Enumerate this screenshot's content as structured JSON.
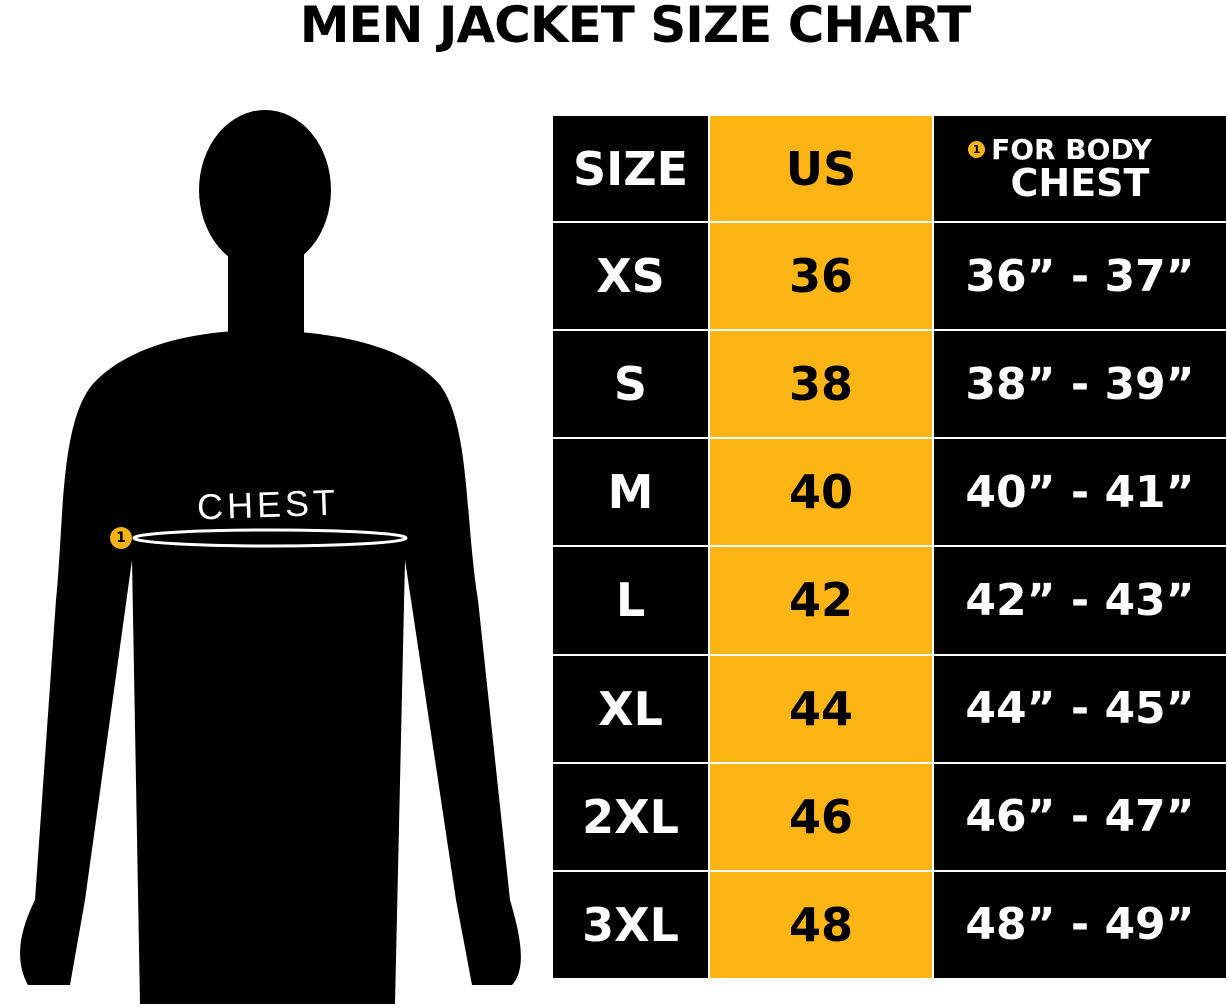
{
  "title": "MEN JACKET SIZE CHART",
  "figure": {
    "chest_label": "CHEST",
    "marker": "1"
  },
  "colors": {
    "accent": "#fdb515",
    "background": "#000000",
    "text": "#ffffff"
  },
  "table": {
    "headers": {
      "size": "SIZE",
      "us": "US",
      "chest_marker": "1",
      "chest_line1": "FOR BODY",
      "chest_line2": "CHEST"
    },
    "rows": [
      {
        "size": "XS",
        "us": "36",
        "chest": "36” - 37”"
      },
      {
        "size": "S",
        "us": "38",
        "chest": "38” - 39”"
      },
      {
        "size": "M",
        "us": "40",
        "chest": "40” - 41”"
      },
      {
        "size": "L",
        "us": "42",
        "chest": "42” - 43”"
      },
      {
        "size": "XL",
        "us": "44",
        "chest": "44” - 45”"
      },
      {
        "size": "2XL",
        "us": "46",
        "chest": "46” - 47”"
      },
      {
        "size": "3XL",
        "us": "48",
        "chest": "48” - 49”"
      }
    ]
  }
}
